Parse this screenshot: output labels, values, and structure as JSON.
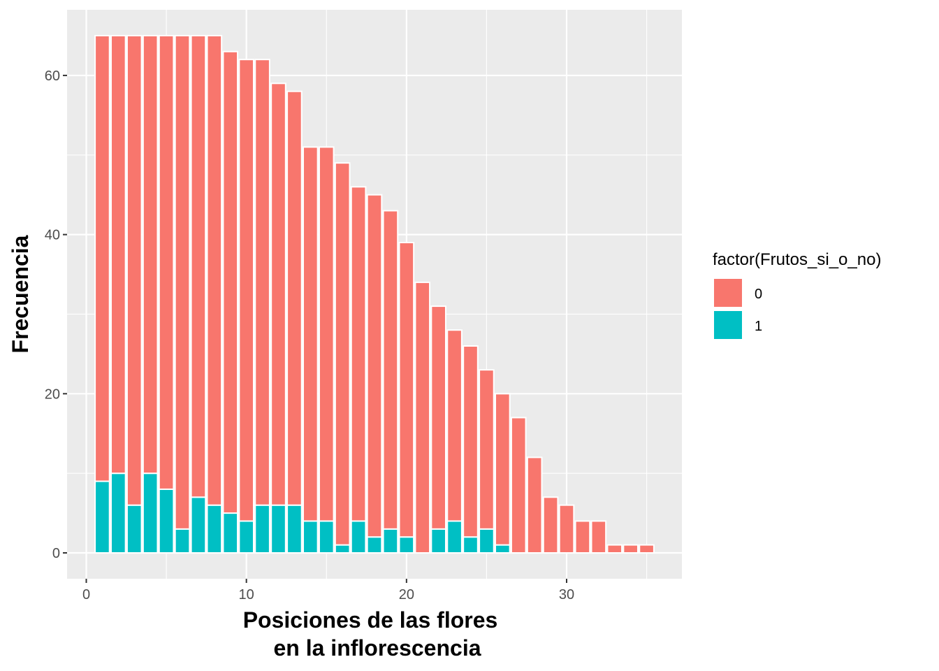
{
  "chart_data": {
    "type": "bar",
    "stacked": true,
    "x": [
      1,
      2,
      3,
      4,
      5,
      6,
      7,
      8,
      9,
      10,
      11,
      12,
      13,
      14,
      15,
      16,
      17,
      18,
      19,
      20,
      21,
      22,
      23,
      24,
      25,
      26,
      27,
      28,
      29,
      30,
      31,
      32,
      33,
      34,
      35
    ],
    "series": [
      {
        "name": "0",
        "color": "#F8766D",
        "values": [
          56,
          55,
          59,
          55,
          57,
          62,
          58,
          59,
          58,
          58,
          56,
          53,
          52,
          47,
          47,
          48,
          42,
          43,
          40,
          37,
          34,
          28,
          24,
          24,
          20,
          19,
          17,
          12,
          7,
          6,
          4,
          4,
          1,
          1,
          1
        ]
      },
      {
        "name": "1",
        "color": "#00BFC4",
        "values": [
          9,
          10,
          6,
          10,
          8,
          3,
          7,
          6,
          5,
          4,
          6,
          6,
          6,
          4,
          4,
          1,
          4,
          2,
          3,
          2,
          0,
          3,
          4,
          2,
          3,
          1,
          0,
          0,
          0,
          0,
          0,
          0,
          0,
          0,
          0
        ]
      }
    ],
    "xlabel_line1": "Posiciones de las flores",
    "xlabel_line2": "en la inflorescencia",
    "ylabel": "Frecuencia",
    "xlim": [
      -1.2,
      37.2
    ],
    "ylim": [
      -3.25,
      68.25
    ],
    "x_ticks": [
      0,
      10,
      20,
      30
    ],
    "y_ticks": [
      0,
      20,
      40,
      60
    ],
    "x_tick_labels": [
      "0",
      "10",
      "20",
      "30"
    ],
    "y_tick_labels": [
      "0",
      "20",
      "40",
      "60"
    ],
    "x_minor_ticks": [
      5,
      15,
      25,
      35
    ],
    "y_minor_ticks": [
      10,
      30,
      50
    ],
    "panel_background": "#EBEBEB",
    "grid_color": "#FFFFFF",
    "grid": true,
    "legend": {
      "title": "factor(Frutos_si_o_no)",
      "position": "right",
      "entries": [
        {
          "label": "0",
          "color": "#F8766D"
        },
        {
          "label": "1",
          "color": "#00BFC4"
        }
      ]
    }
  }
}
